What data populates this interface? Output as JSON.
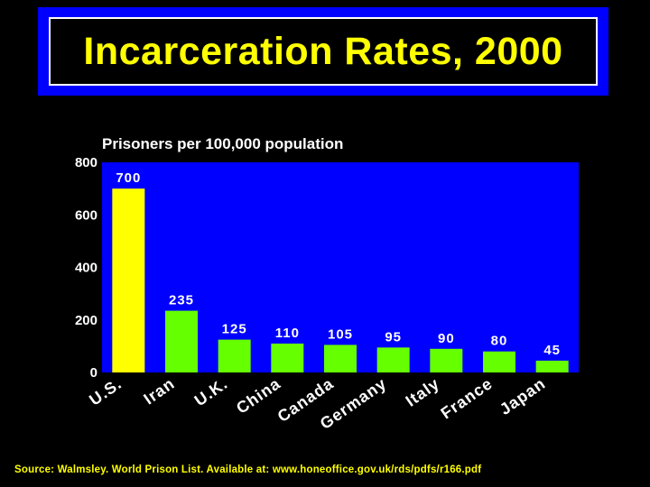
{
  "title": "Incarceration Rates, 2000",
  "source": "Source: Walmsley.  World Prison List.  Available at: www.honeoffice.gov.uk/rds/pdfs/r166.pdf",
  "colors": {
    "background": "#000000",
    "plot_area": "#0000ff",
    "highlight_bar": "#ffff00",
    "bar": "#66ff00",
    "text": "#ffffff",
    "title_text": "#ffff00"
  },
  "chart_data": {
    "type": "bar",
    "title": "Prisoners per 100,000 population",
    "categories": [
      "U.S.",
      "Iran",
      "U.K.",
      "China",
      "Canada",
      "Germany",
      "Italy",
      "France",
      "Japan"
    ],
    "values": [
      700,
      235,
      125,
      110,
      105,
      95,
      90,
      80,
      45
    ],
    "data_labels": [
      "700",
      "235",
      "125",
      "110",
      "105",
      "95",
      "90",
      "80",
      "45"
    ],
    "yticks": [
      0,
      200,
      400,
      600,
      800
    ],
    "ylim": [
      0,
      800
    ],
    "grid": false,
    "legend": "none"
  }
}
